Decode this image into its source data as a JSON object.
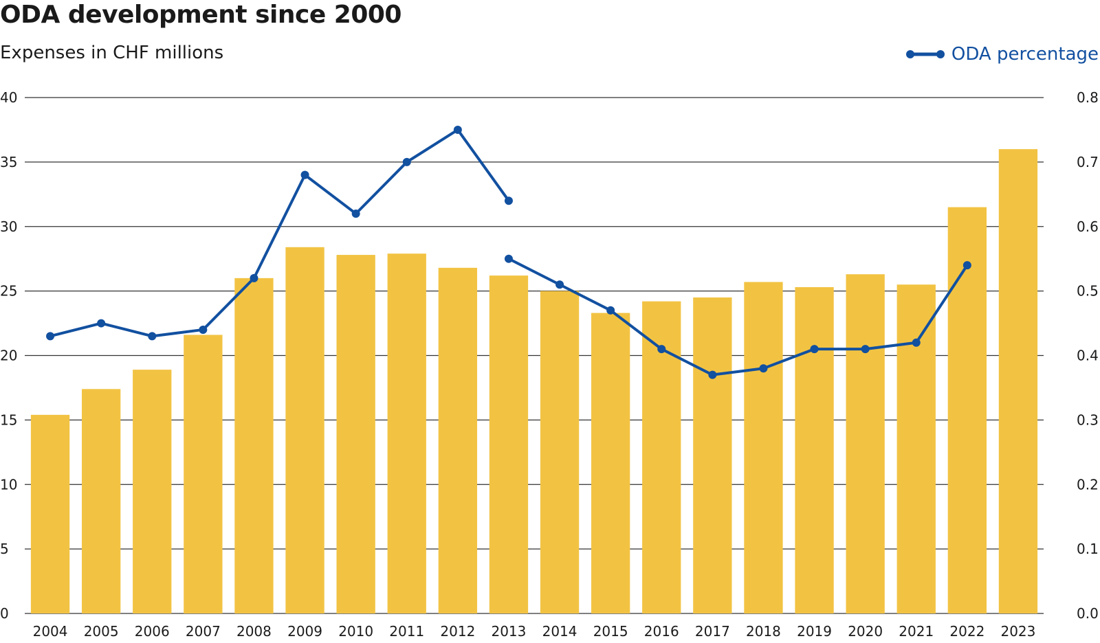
{
  "header": {
    "title": "ODA development since 2000",
    "subtitle": "Expenses in CHF millions"
  },
  "legend": {
    "line_label": "ODA percentage",
    "line_color": "#1250a0"
  },
  "colors": {
    "bar": "#f2c343",
    "line": "#1250a0",
    "grid": "#333333"
  },
  "chart_data": {
    "type": "bar",
    "title": "ODA development since 2000",
    "subtitle": "Expenses in CHF millions",
    "categories": [
      "2004",
      "2005",
      "2006",
      "2007",
      "2008",
      "2009",
      "2010",
      "2011",
      "2012",
      "2013",
      "2014",
      "2015",
      "2016",
      "2017",
      "2018",
      "2019",
      "2020",
      "2021",
      "2022",
      "2023"
    ],
    "series": [
      {
        "type": "bar",
        "axis": "left",
        "values": [
          15.4,
          17.4,
          18.9,
          21.6,
          26.0,
          28.4,
          27.8,
          27.9,
          26.8,
          26.2,
          25.0,
          23.3,
          24.2,
          24.5,
          25.7,
          25.3,
          26.3,
          25.5,
          31.5,
          36.0
        ]
      },
      {
        "type": "line",
        "axis": "right",
        "name": "ODA percentage",
        "segments": [
          {
            "x": [
              "2004",
              "2005",
              "2006",
              "2007",
              "2008",
              "2009",
              "2010",
              "2011",
              "2012",
              "2013"
            ],
            "values": [
              0.43,
              0.45,
              0.43,
              0.44,
              0.52,
              0.68,
              0.62,
              0.7,
              0.75,
              0.64
            ]
          },
          {
            "x": [
              "2013",
              "2014",
              "2015",
              "2016",
              "2017",
              "2018",
              "2019",
              "2020",
              "2021",
              "2022"
            ],
            "values": [
              0.55,
              0.51,
              0.47,
              0.41,
              0.37,
              0.38,
              0.41,
              0.41,
              0.42,
              0.54
            ]
          }
        ]
      }
    ],
    "ylim_left": [
      0,
      40
    ],
    "yticks_left": [
      "0",
      "5",
      "10",
      "15",
      "20",
      "25",
      "30",
      "35",
      "40"
    ],
    "ylim_right": [
      0,
      0.8
    ],
    "yticks_right": [
      "0.0",
      "0.1",
      "0.2",
      "0.3",
      "0.4",
      "0.5",
      "0.6",
      "0.7",
      "0.8"
    ],
    "grid": true,
    "legend_position": "top-right"
  }
}
